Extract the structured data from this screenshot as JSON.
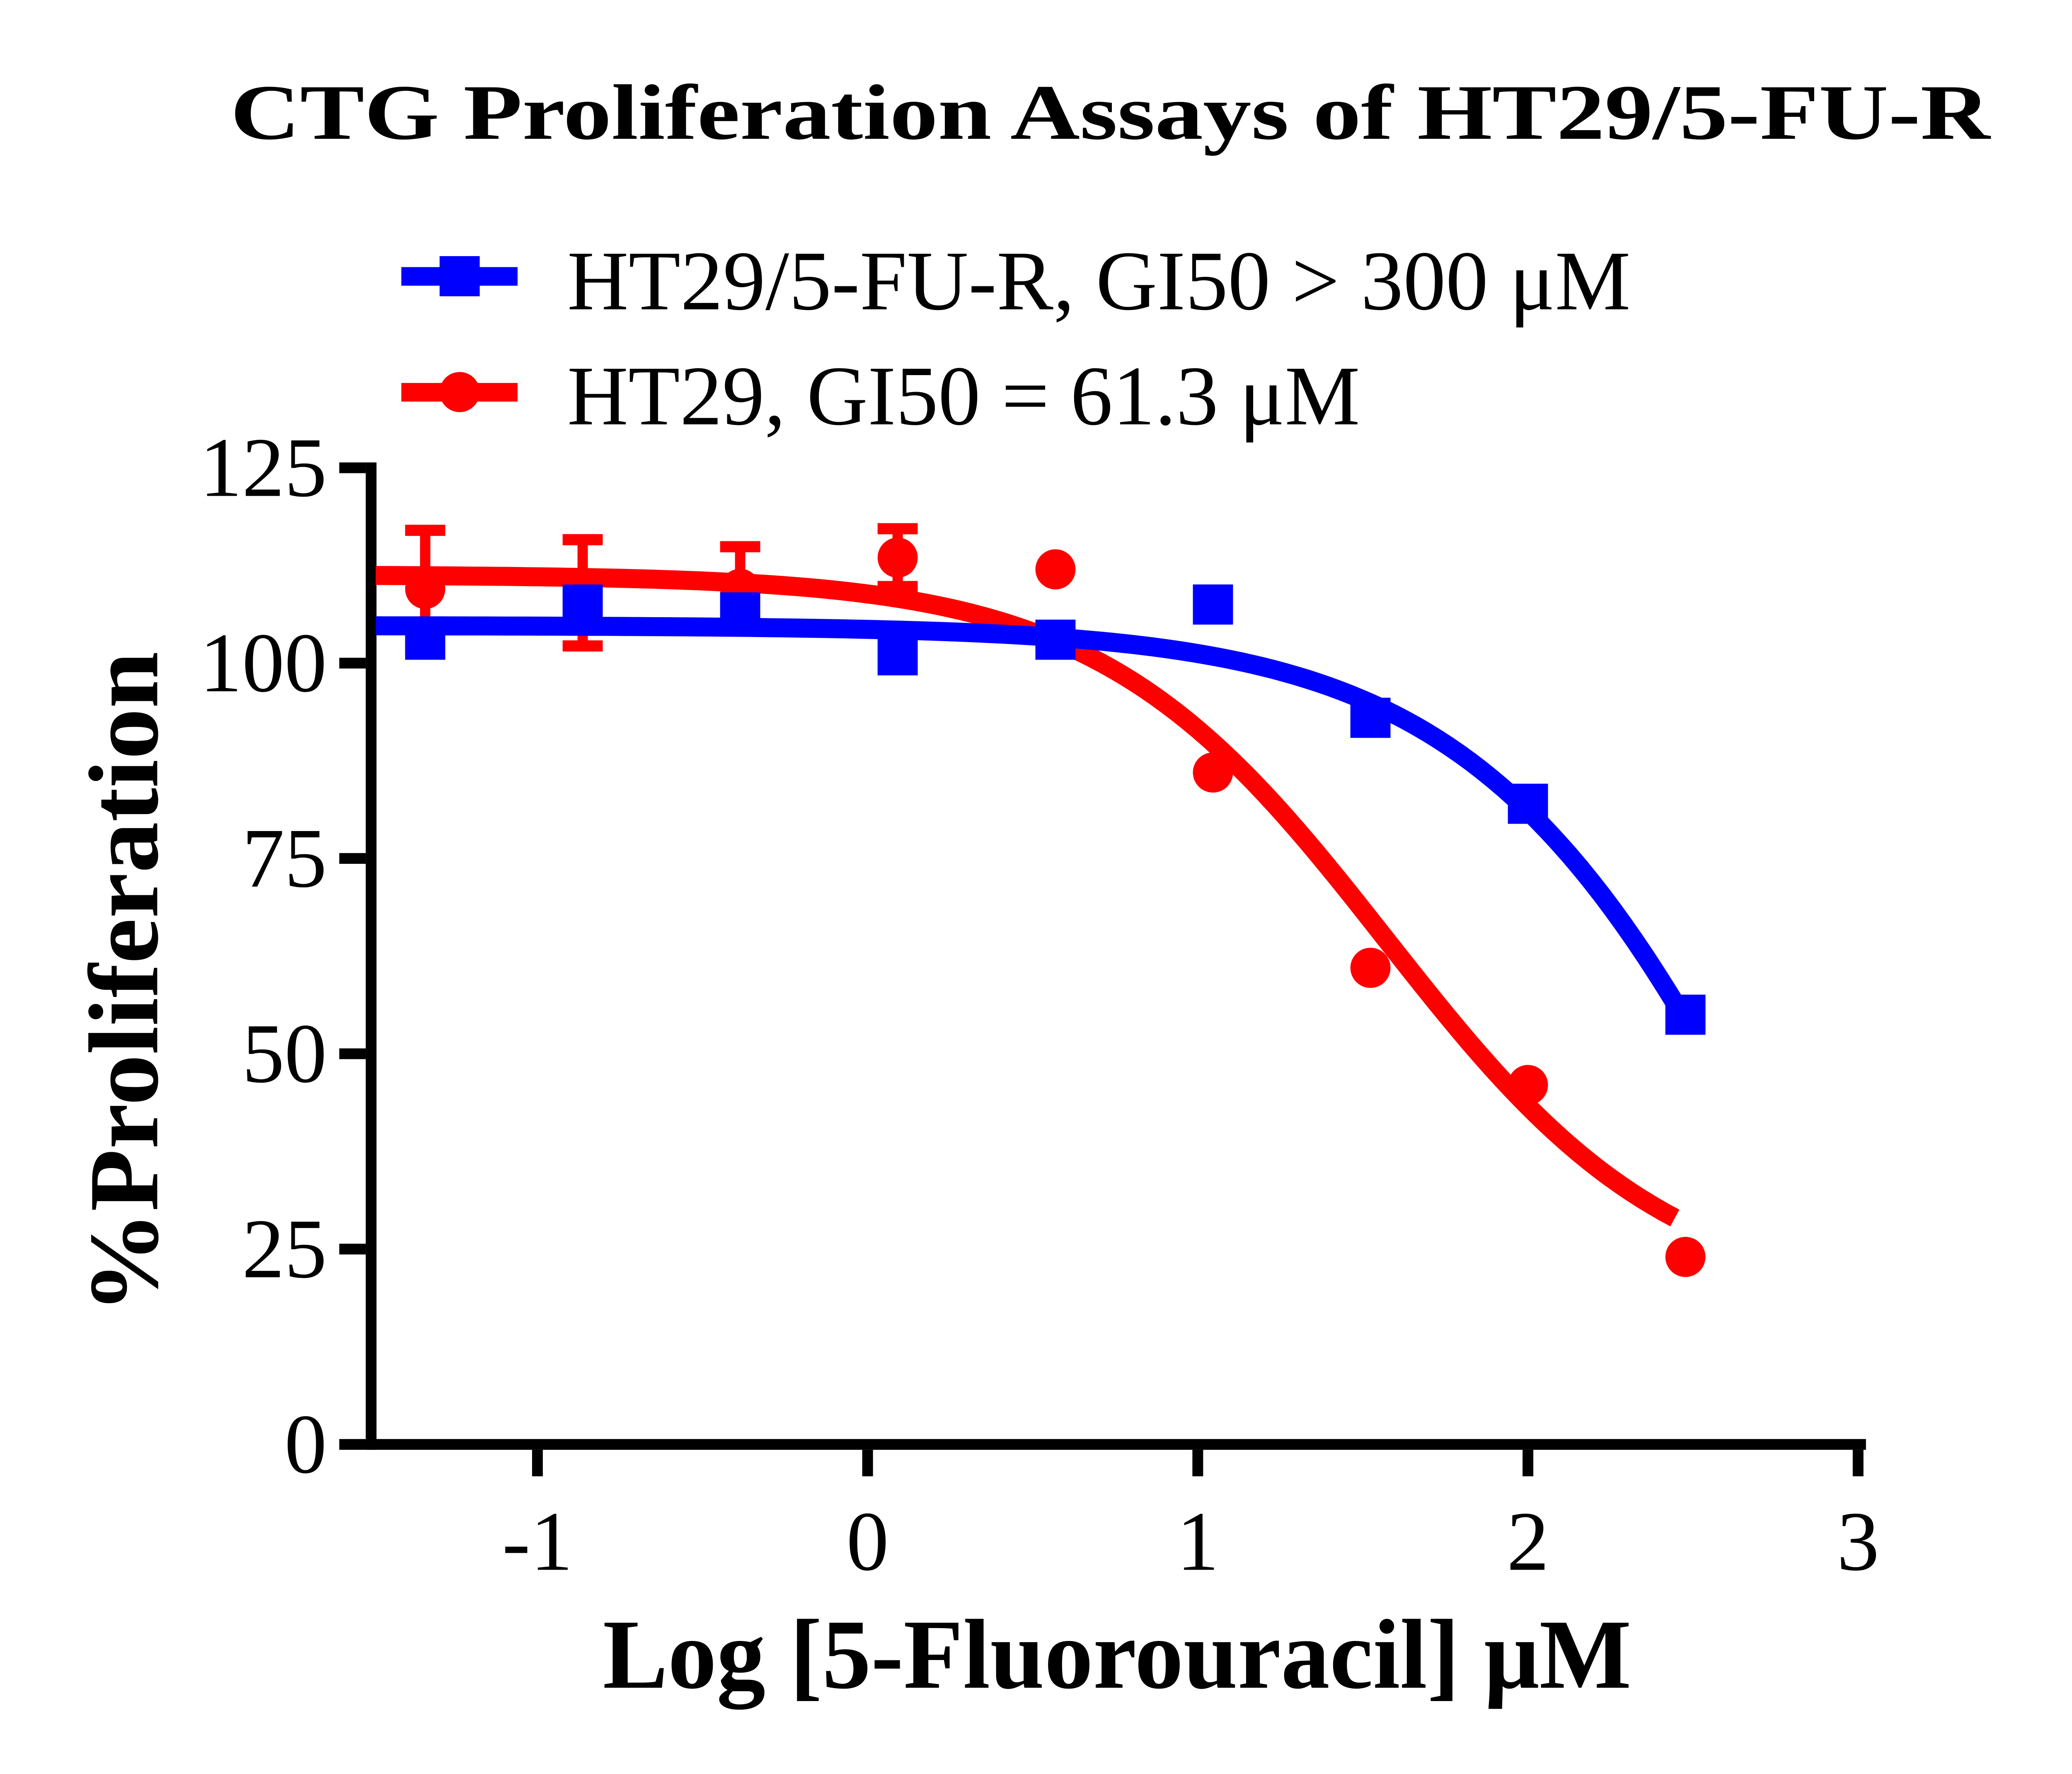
{
  "title": "CTG Proliferation Assays of HT29/5-FU-R",
  "axes": {
    "x": {
      "label": "Log [5-Fluorouracil] μM",
      "min": -1.5,
      "max": 3,
      "ticks": [
        {
          "value": -1,
          "label": "-1"
        },
        {
          "value": 0,
          "label": "0"
        },
        {
          "value": 1,
          "label": "1"
        },
        {
          "value": 2,
          "label": "2"
        },
        {
          "value": 3,
          "label": "3"
        }
      ]
    },
    "y": {
      "label": "%Proliferation",
      "min": 0,
      "max": 125,
      "ticks": [
        {
          "value": 0,
          "label": "0"
        },
        {
          "value": 25,
          "label": "25"
        },
        {
          "value": 50,
          "label": "50"
        },
        {
          "value": 75,
          "label": "75"
        },
        {
          "value": 100,
          "label": "100"
        },
        {
          "value": 125,
          "label": "125"
        }
      ]
    }
  },
  "chart_data": {
    "type": "line",
    "title": "CTG Proliferation Assays of HT29/5-FU-R",
    "xlabel": "Log [5-Fluorouracil] μM",
    "ylabel": "%Proliferation",
    "xlim": [
      -1.5,
      3
    ],
    "ylim": [
      0,
      125
    ],
    "grid": false,
    "legend_position": "top-left",
    "x_values": [
      -1.34,
      -0.863,
      -0.386,
      0.091,
      0.569,
      1.046,
      1.523,
      2.0,
      2.477
    ],
    "series": [
      {
        "name": "HT29/5-FU-R",
        "legend_label": "HT29/5-FU-R, GI50 > 300 μM",
        "gi50": "> 300 μM",
        "color": "#0000FF",
        "marker": "square",
        "values": [
          103,
          107.5,
          106.5,
          101,
          103,
          107.5,
          93,
          82,
          55
        ],
        "errors": [
          0,
          0,
          0,
          0,
          0,
          0,
          0,
          0,
          0
        ],
        "fit": {
          "top": 104.8,
          "bottom": -60,
          "logic50": 2.88,
          "hill": 0.88,
          "domain": [
            -1.49,
            2.49
          ]
        }
      },
      {
        "name": "HT29",
        "legend_label": "HT29, GI50 = 61.3 μM",
        "gi50": "= 61.3 μM",
        "color": "#FF0000",
        "marker": "circle",
        "values": [
          109.5,
          109,
          109.5,
          113.5,
          112,
          86,
          61,
          46,
          24
        ],
        "errors": [
          7.5,
          6.8,
          5.4,
          3.7,
          0,
          0,
          0,
          0,
          0
        ],
        "fit": {
          "top": 111.3,
          "bottom": 18,
          "logic50": 1.57,
          "hill": 1.0,
          "domain": [
            -1.49,
            2.445
          ]
        }
      }
    ]
  }
}
